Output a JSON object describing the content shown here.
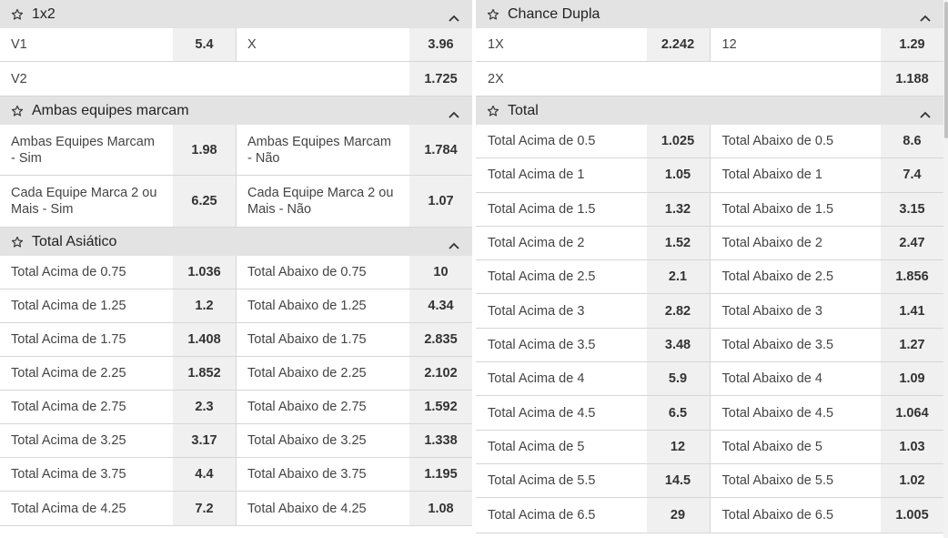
{
  "left": [
    {
      "title": "1x2",
      "row_h": 37,
      "rows": [
        [
          {
            "label": "V1",
            "odd": "5.4"
          },
          {
            "label": "X",
            "odd": "3.96"
          }
        ],
        [
          {
            "label": "V2",
            "odd": "1.725"
          },
          null
        ]
      ]
    },
    {
      "title": "Ambas equipes marcam",
      "row_h": 56,
      "rows": [
        [
          {
            "label": "Ambas Equipes Marcam - Sim",
            "odd": "1.98"
          },
          {
            "label": "Ambas Equipes Marcam - Não",
            "odd": "1.784"
          }
        ],
        [
          {
            "label": "Cada Equipe Marca 2 ou Mais - Sim",
            "odd": "6.25"
          },
          {
            "label": "Cada Equipe Marca 2 ou Mais - Não",
            "odd": "1.07"
          }
        ]
      ]
    },
    {
      "title": "Total Asiático",
      "row_h": 37,
      "rows": [
        [
          {
            "label": "Total Acima de 0.75",
            "odd": "1.036"
          },
          {
            "label": "Total Abaixo de 0.75",
            "odd": "10"
          }
        ],
        [
          {
            "label": "Total Acima de 1.25",
            "odd": "1.2"
          },
          {
            "label": "Total Abaixo de 1.25",
            "odd": "4.34"
          }
        ],
        [
          {
            "label": "Total Acima de 1.75",
            "odd": "1.408"
          },
          {
            "label": "Total Abaixo de 1.75",
            "odd": "2.835"
          }
        ],
        [
          {
            "label": "Total Acima de 2.25",
            "odd": "1.852"
          },
          {
            "label": "Total Abaixo de 2.25",
            "odd": "2.102"
          }
        ],
        [
          {
            "label": "Total Acima de 2.75",
            "odd": "2.3"
          },
          {
            "label": "Total Abaixo de 2.75",
            "odd": "1.592"
          }
        ],
        [
          {
            "label": "Total Acima de 3.25",
            "odd": "3.17"
          },
          {
            "label": "Total Abaixo de 3.25",
            "odd": "1.338"
          }
        ],
        [
          {
            "label": "Total Acima de 3.75",
            "odd": "4.4"
          },
          {
            "label": "Total Abaixo de 3.75",
            "odd": "1.195"
          }
        ],
        [
          {
            "label": "Total Acima de 4.25",
            "odd": "7.2"
          },
          {
            "label": "Total Abaixo de 4.25",
            "odd": "1.08"
          }
        ]
      ]
    }
  ],
  "right": [
    {
      "title": "Chance Dupla",
      "row_h": 37,
      "rows": [
        [
          {
            "label": "1X",
            "odd": "2.242"
          },
          {
            "label": "12",
            "odd": "1.29"
          }
        ],
        [
          {
            "label": "2X",
            "odd": "1.188"
          },
          null
        ]
      ]
    },
    {
      "title": "Total",
      "row_h": 37.3,
      "rows": [
        [
          {
            "label": "Total Acima de 0.5",
            "odd": "1.025"
          },
          {
            "label": "Total Abaixo de 0.5",
            "odd": "8.6"
          }
        ],
        [
          {
            "label": "Total Acima de 1",
            "odd": "1.05"
          },
          {
            "label": "Total Abaixo de 1",
            "odd": "7.4"
          }
        ],
        [
          {
            "label": "Total Acima de 1.5",
            "odd": "1.32"
          },
          {
            "label": "Total Abaixo de 1.5",
            "odd": "3.15"
          }
        ],
        [
          {
            "label": "Total Acima de 2",
            "odd": "1.52"
          },
          {
            "label": "Total Abaixo de 2",
            "odd": "2.47"
          }
        ],
        [
          {
            "label": "Total Acima de 2.5",
            "odd": "2.1"
          },
          {
            "label": "Total Abaixo de 2.5",
            "odd": "1.856"
          }
        ],
        [
          {
            "label": "Total Acima de 3",
            "odd": "2.82"
          },
          {
            "label": "Total Abaixo de 3",
            "odd": "1.41"
          }
        ],
        [
          {
            "label": "Total Acima de 3.5",
            "odd": "3.48"
          },
          {
            "label": "Total Abaixo de 3.5",
            "odd": "1.27"
          }
        ],
        [
          {
            "label": "Total Acima de 4",
            "odd": "5.9"
          },
          {
            "label": "Total Abaixo de 4",
            "odd": "1.09"
          }
        ],
        [
          {
            "label": "Total Acima de 4.5",
            "odd": "6.5"
          },
          {
            "label": "Total Abaixo de 4.5",
            "odd": "1.064"
          }
        ],
        [
          {
            "label": "Total Acima de 5",
            "odd": "12"
          },
          {
            "label": "Total Abaixo de 5",
            "odd": "1.03"
          }
        ],
        [
          {
            "label": "Total Acima de 5.5",
            "odd": "14.5"
          },
          {
            "label": "Total Abaixo de 5.5",
            "odd": "1.02"
          }
        ],
        [
          {
            "label": "Total Acima de 6.5",
            "odd": "29"
          },
          {
            "label": "Total Abaixo de 6.5",
            "odd": "1.005"
          }
        ]
      ]
    }
  ],
  "icons": {
    "favorite": "star-outline-icon",
    "collapse": "chevron-up-icon"
  }
}
